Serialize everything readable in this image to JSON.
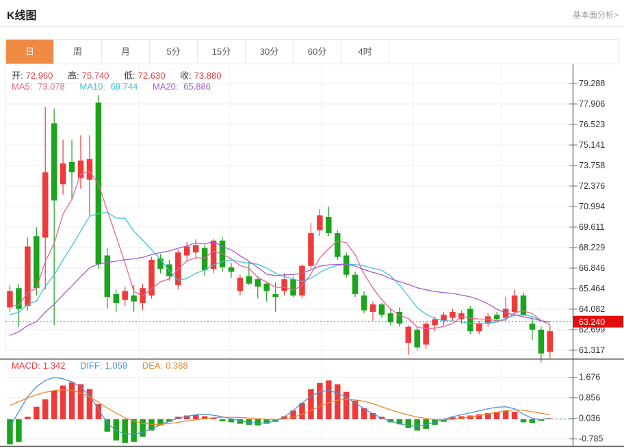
{
  "header": {
    "title": "K线图",
    "link": "基本面分析>"
  },
  "tabs": {
    "items": [
      "日",
      "周",
      "月",
      "5分",
      "15分",
      "30分",
      "60分",
      "4时"
    ],
    "active_index": 0
  },
  "info_bar": {
    "open_label": "开:",
    "open": "72.960",
    "high_label": "高:",
    "high": "75.740",
    "low_label": "低:",
    "low": "72.630",
    "close_label": "收:",
    "close": "73.880"
  },
  "ma_bar": {
    "ma5_label": "MA5:",
    "ma5": "73.078",
    "ma10_label": "MA10:",
    "ma10": "69.744",
    "ma20_label": "MA20:",
    "ma20": "65.886"
  },
  "macd_bar": {
    "macd_label": "MACD:",
    "macd": "1.342",
    "diff_label": "DIFF:",
    "diff": "1.059",
    "dea_label": "DEA:",
    "dea": "0.388"
  },
  "price_axis": {
    "labels": [
      "79.288",
      "77.906",
      "76.523",
      "75.141",
      "73.758",
      "72.376",
      "70.994",
      "69.611",
      "68.229",
      "66.846",
      "65.464",
      "64.082",
      "62.699",
      "61.317"
    ],
    "current_price_label": "63.240"
  },
  "macd_axis": {
    "labels": [
      "1.676",
      "0.856",
      "0.036",
      "-0.785"
    ]
  },
  "colors": {
    "up": "#ef3a3a",
    "down": "#1ca41c",
    "ma5": "#ee6098",
    "ma10": "#3fc3d8",
    "ma20": "#a45bd0",
    "diff": "#4a90d9",
    "dea": "#f0862a",
    "value_red": "#e8393d",
    "label_dark": "#333333",
    "tab_active_bg": "#ef8a43",
    "badge_bg": "#e60d0d",
    "grid": "#ededed",
    "vgrid": "#f0f0f0",
    "frame": "#4a4a4a",
    "dotted_price": "#e83030",
    "macd_zero_dash": "#66c9e8"
  },
  "chart_data": {
    "type": "candlestick",
    "title": "K线图",
    "legend": [
      "MA5",
      "MA10",
      "MA20",
      "MACD",
      "DIFF",
      "DEA"
    ],
    "grid": true,
    "y_axis_position": "right",
    "ylim_main": [
      60.81,
      80.762
    ],
    "y_ticks_main": [
      79.288,
      77.906,
      76.523,
      75.141,
      73.758,
      72.376,
      70.994,
      69.611,
      68.229,
      66.846,
      65.464,
      64.082,
      62.699,
      61.317
    ],
    "current_price": 63.24,
    "candles_ohlc": [
      [
        64.2,
        65.7,
        63.9,
        65.3
      ],
      [
        65.5,
        65.8,
        62.9,
        64.1
      ],
      [
        64.3,
        68.9,
        64.0,
        68.3
      ],
      [
        69.0,
        69.6,
        65.0,
        65.5
      ],
      [
        68.9,
        77.7,
        65.4,
        73.3
      ],
      [
        76.6,
        77.6,
        63.0,
        71.4
      ],
      [
        72.5,
        75.5,
        71.8,
        73.9
      ],
      [
        74.0,
        75.5,
        71.4,
        73.3
      ],
      [
        72.9,
        75.8,
        72.2,
        74.1
      ],
      [
        72.8,
        75.8,
        70.4,
        74.2
      ],
      [
        78.0,
        78.5,
        66.8,
        67.1
      ],
      [
        67.7,
        68.2,
        64.1,
        64.9
      ],
      [
        65.1,
        65.4,
        63.9,
        64.5
      ],
      [
        64.7,
        65.6,
        64.3,
        65.3
      ],
      [
        65.0,
        65.7,
        63.9,
        64.6
      ],
      [
        64.5,
        65.8,
        64.0,
        65.5
      ],
      [
        65.0,
        67.6,
        64.8,
        67.4
      ],
      [
        67.5,
        67.8,
        66.5,
        66.8
      ],
      [
        67.1,
        67.4,
        66.0,
        66.3
      ],
      [
        65.7,
        68.1,
        65.4,
        67.9
      ],
      [
        67.7,
        68.6,
        67.3,
        68.3
      ],
      [
        67.9,
        68.8,
        67.5,
        68.4
      ],
      [
        68.2,
        68.4,
        66.3,
        66.7
      ],
      [
        66.8,
        68.8,
        66.5,
        68.7
      ],
      [
        68.7,
        68.9,
        66.6,
        66.9
      ],
      [
        66.9,
        67.2,
        66.2,
        66.6
      ],
      [
        65.3,
        66.4,
        65.0,
        66.2
      ],
      [
        66.3,
        67.3,
        65.7,
        65.8
      ],
      [
        66.1,
        66.3,
        64.8,
        65.6
      ],
      [
        65.8,
        65.9,
        64.6,
        65.3
      ],
      [
        65.1,
        65.9,
        63.9,
        64.9
      ],
      [
        65.3,
        66.5,
        65.0,
        66.1
      ],
      [
        66.1,
        66.3,
        64.9,
        65.0
      ],
      [
        65.0,
        67.1,
        64.8,
        67.0
      ],
      [
        67.0,
        69.9,
        66.8,
        69.2
      ],
      [
        69.4,
        70.8,
        69.0,
        70.4
      ],
      [
        70.3,
        71.0,
        69.0,
        69.2
      ],
      [
        69.2,
        69.4,
        67.4,
        67.6
      ],
      [
        67.7,
        67.9,
        66.2,
        66.4
      ],
      [
        66.4,
        66.6,
        64.9,
        65.1
      ],
      [
        65.0,
        65.3,
        63.8,
        64.0
      ],
      [
        63.9,
        64.6,
        63.3,
        64.4
      ],
      [
        64.4,
        64.5,
        63.5,
        63.7
      ],
      [
        63.8,
        64.1,
        63.0,
        63.2
      ],
      [
        63.9,
        64.2,
        62.9,
        63.1
      ],
      [
        61.8,
        63.0,
        61.0,
        62.9
      ],
      [
        62.7,
        62.9,
        61.3,
        61.5
      ],
      [
        61.7,
        63.2,
        61.4,
        63.1
      ],
      [
        63.0,
        63.6,
        62.6,
        63.4
      ],
      [
        63.3,
        63.9,
        63.0,
        63.7
      ],
      [
        63.5,
        64.1,
        63.3,
        63.9
      ],
      [
        63.4,
        64.0,
        63.1,
        63.8
      ],
      [
        64.1,
        64.3,
        62.4,
        62.6
      ],
      [
        62.6,
        63.3,
        62.4,
        63.1
      ],
      [
        63.1,
        63.8,
        62.9,
        63.6
      ],
      [
        63.7,
        63.9,
        63.2,
        63.4
      ],
      [
        63.5,
        64.9,
        63.3,
        64.1
      ],
      [
        63.9,
        65.4,
        63.7,
        65.0
      ],
      [
        65.0,
        65.2,
        63.6,
        63.7
      ],
      [
        63.1,
        63.6,
        62.0,
        62.7
      ],
      [
        62.7,
        62.9,
        60.5,
        61.1
      ],
      [
        61.2,
        63.0,
        60.8,
        62.6
      ]
    ],
    "ma_periods": [
      5,
      10,
      20
    ],
    "ma_prehistory_estimate": [
      59.0,
      59.4,
      59.8,
      60.2,
      60.5,
      60.8,
      61.1,
      61.4,
      61.7,
      62.0,
      62.3,
      62.6,
      62.9,
      63.2,
      63.4,
      63.6,
      63.8,
      64.0,
      64.1,
      64.2
    ],
    "macd_panel": {
      "ylim": [
        -1.039,
        2.214
      ],
      "y_ticks": [
        1.676,
        0.856,
        0.036,
        -0.785
      ],
      "histogram": [
        -1.0,
        -0.9,
        0.1,
        0.5,
        0.8,
        1.15,
        1.35,
        1.47,
        1.4,
        1.2,
        0.6,
        -0.5,
        -0.85,
        -0.95,
        -0.9,
        -0.7,
        -0.45,
        -0.25,
        -0.1,
        0.1,
        0.15,
        0.18,
        0.12,
        0.05,
        -0.08,
        -0.12,
        -0.18,
        -0.22,
        -0.25,
        -0.18,
        -0.1,
        0.12,
        0.35,
        0.65,
        1.2,
        1.45,
        1.55,
        1.4,
        1.1,
        0.75,
        0.45,
        0.25,
        0.1,
        -0.12,
        -0.2,
        -0.35,
        -0.45,
        -0.38,
        -0.22,
        -0.1,
        0.08,
        0.12,
        0.15,
        0.2,
        0.25,
        0.3,
        0.35,
        0.3,
        -0.12,
        -0.15,
        -0.06,
        0.03
      ],
      "diff": [
        -0.3,
        0.3,
        0.9,
        1.3,
        1.55,
        1.676,
        1.62,
        1.5,
        1.28,
        0.95,
        0.4,
        -0.15,
        -0.45,
        -0.58,
        -0.6,
        -0.52,
        -0.38,
        -0.22,
        -0.08,
        0.04,
        0.12,
        0.18,
        0.2,
        0.16,
        0.1,
        0.02,
        -0.06,
        -0.12,
        -0.16,
        -0.14,
        -0.06,
        0.1,
        0.35,
        0.65,
        0.92,
        1.1,
        1.15,
        1.05,
        0.88,
        0.65,
        0.42,
        0.22,
        0.05,
        -0.08,
        -0.18,
        -0.25,
        -0.28,
        -0.22,
        -0.12,
        0.0,
        0.1,
        0.18,
        0.26,
        0.34,
        0.42,
        0.48,
        0.5,
        0.42,
        0.2,
        0.04,
        -0.02,
        0.04
      ],
      "dea": [
        0.55,
        0.7,
        0.85,
        0.98,
        1.08,
        1.15,
        1.18,
        1.15,
        1.06,
        0.9,
        0.68,
        0.45,
        0.24,
        0.06,
        -0.08,
        -0.16,
        -0.2,
        -0.2,
        -0.17,
        -0.12,
        -0.07,
        -0.02,
        0.03,
        0.06,
        0.08,
        0.08,
        0.07,
        0.05,
        0.02,
        0.0,
        -0.01,
        0.01,
        0.08,
        0.2,
        0.35,
        0.52,
        0.66,
        0.76,
        0.8,
        0.78,
        0.72,
        0.62,
        0.5,
        0.38,
        0.27,
        0.17,
        0.09,
        0.03,
        -0.01,
        -0.02,
        0.0,
        0.04,
        0.09,
        0.15,
        0.21,
        0.28,
        0.34,
        0.38,
        0.36,
        0.3,
        0.24,
        0.18
      ]
    }
  }
}
